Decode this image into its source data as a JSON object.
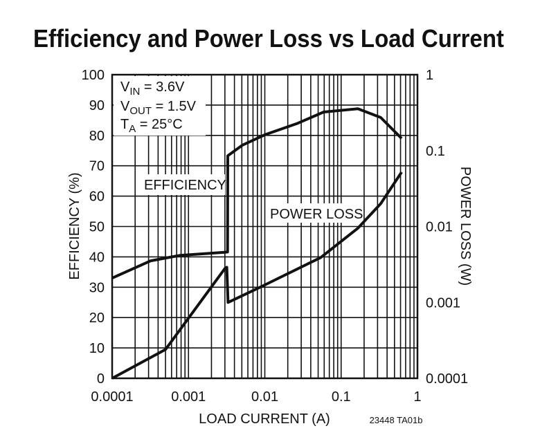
{
  "chart_data": {
    "type": "line",
    "title": "Efficiency and Power Loss vs Load Current",
    "xlabel": "LOAD CURRENT (A)",
    "ylabel": "EFFICIENCY (%)",
    "y2label": "POWER LOSS (W)",
    "xscale": "log",
    "xlim": [
      0.0001,
      1
    ],
    "ylim": [
      0,
      100
    ],
    "y2scale": "log",
    "y2lim": [
      0.0001,
      1
    ],
    "grid": true,
    "x_ticks": [
      "0.0001",
      "0.001",
      "0.01",
      "0.1",
      "1"
    ],
    "y_ticks": [
      "0",
      "10",
      "20",
      "30",
      "40",
      "50",
      "60",
      "70",
      "80",
      "90",
      "100"
    ],
    "y2_ticks": [
      "0.0001",
      "0.001",
      "0.01",
      "0.1",
      "1"
    ],
    "conditions": {
      "vin": {
        "sym": "V",
        "sub": "IN",
        "rest": " = 3.6V"
      },
      "vout": {
        "sym": "V",
        "sub": "OUT",
        "rest": " = 1.5V"
      },
      "ta": {
        "sym": "T",
        "sub": "A",
        "rest": " = 25°C"
      }
    },
    "series": [
      {
        "name": "EFFICIENCY",
        "axis": "left",
        "x": [
          0.0001,
          0.00032,
          0.00078,
          0.003,
          0.00325,
          0.00327,
          0.0051,
          0.01,
          0.027,
          0.059,
          0.166,
          0.33,
          0.62
        ],
        "y": [
          33.0,
          38.7,
          40.5,
          41.5,
          41.6,
          73.3,
          76.8,
          80.2,
          84.0,
          87.7,
          88.8,
          85.9,
          79.0
        ]
      },
      {
        "name": "POWER LOSS",
        "axis": "right",
        "x": [
          0.0001,
          0.0005,
          0.003,
          0.00318,
          0.0033,
          0.01,
          0.054,
          0.166,
          0.33,
          0.62
        ],
        "y": [
          0.0001,
          0.00024,
          0.0028,
          0.0029,
          0.001,
          0.0017,
          0.0039,
          0.0095,
          0.02,
          0.052
        ]
      }
    ],
    "footnote": "23448 TA01b"
  }
}
